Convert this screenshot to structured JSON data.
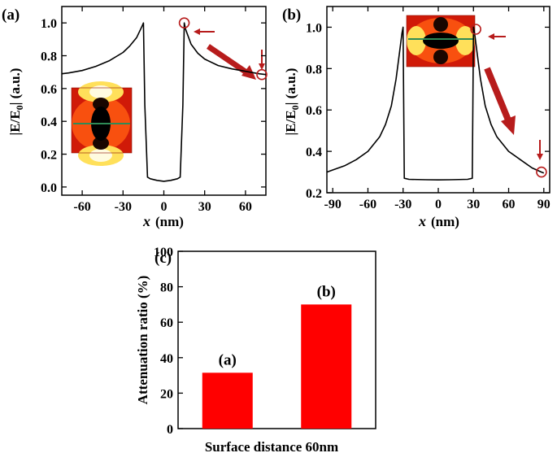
{
  "colors": {
    "curve": "#000000",
    "bar": "#ff0000",
    "annotation": "#b71c1c",
    "probe_line": "#2e8b57"
  },
  "chart_data": [
    {
      "type": "line",
      "panel_label": "(a)",
      "xlabel": "x",
      "xlabel_unit": "(nm)",
      "ylabel": "|E/E0| (a.u.)",
      "ylabel_main": "|E/E",
      "ylabel_sub": "0",
      "ylabel_tail": "| (a.u.)",
      "xlim": [
        -75,
        75
      ],
      "ylim": [
        -0.05,
        1.1
      ],
      "xticks": [
        "-60",
        "-30",
        "0",
        "30",
        "60"
      ],
      "xtick_values": [
        -60,
        -30,
        0,
        30,
        60
      ],
      "yticks": [
        "0.0",
        "0.2",
        "0.4",
        "0.6",
        "0.8",
        "1.0"
      ],
      "ytick_values": [
        0.0,
        0.2,
        0.4,
        0.6,
        0.8,
        1.0
      ],
      "series": [
        {
          "name": "|E/E0|",
          "x": [
            -75,
            -70,
            -60,
            -50,
            -40,
            -30,
            -25,
            -20,
            -16,
            -15,
            -14,
            -12,
            -10,
            -5,
            0,
            5,
            10,
            12,
            14,
            15,
            16,
            20,
            25,
            30,
            40,
            50,
            60,
            70,
            75
          ],
          "y": [
            0.69,
            0.695,
            0.71,
            0.735,
            0.77,
            0.82,
            0.86,
            0.91,
            0.98,
            1.0,
            0.5,
            0.06,
            0.05,
            0.04,
            0.035,
            0.04,
            0.05,
            0.06,
            0.5,
            1.0,
            0.96,
            0.87,
            0.815,
            0.78,
            0.74,
            0.72,
            0.705,
            0.69,
            0.685
          ]
        }
      ],
      "markers": [
        {
          "x": 15,
          "y": 1.0
        },
        {
          "x": 72,
          "y": 0.685
        }
      ]
    },
    {
      "type": "line",
      "panel_label": "(b)",
      "xlabel": "x",
      "xlabel_unit": "(nm)",
      "ylabel": "|E/E0| (a.u.)",
      "ylabel_main": "|E/E",
      "ylabel_sub": "0",
      "ylabel_tail": "| (a.u.)",
      "xlim": [
        -95,
        95
      ],
      "ylim": [
        0.2,
        1.1
      ],
      "xticks": [
        "-90",
        "-60",
        "-30",
        "0",
        "30",
        "60",
        "90"
      ],
      "xtick_values": [
        -90,
        -60,
        -30,
        0,
        30,
        60,
        90
      ],
      "yticks": [
        "0.2",
        "0.4",
        "0.6",
        "0.8",
        "1.0"
      ],
      "ytick_values": [
        0.2,
        0.4,
        0.6,
        0.8,
        1.0
      ],
      "series": [
        {
          "name": "|E/E0|",
          "x": [
            -95,
            -90,
            -80,
            -70,
            -60,
            -50,
            -45,
            -40,
            -36,
            -33,
            -31,
            -30,
            -29,
            -25,
            -10,
            0,
            10,
            25,
            29,
            30,
            31,
            33,
            36,
            40,
            45,
            50,
            60,
            70,
            80,
            88,
            90
          ],
          "y": [
            0.3,
            0.31,
            0.33,
            0.36,
            0.4,
            0.47,
            0.53,
            0.62,
            0.75,
            0.88,
            0.97,
            1.0,
            0.27,
            0.265,
            0.263,
            0.262,
            0.263,
            0.265,
            0.27,
            1.0,
            0.97,
            0.88,
            0.75,
            0.62,
            0.53,
            0.47,
            0.4,
            0.36,
            0.32,
            0.3,
            0.295
          ]
        }
      ],
      "markers": [
        {
          "x": 32,
          "y": 0.99
        },
        {
          "x": 88,
          "y": 0.3
        }
      ]
    },
    {
      "type": "bar",
      "panel_label": "(c)",
      "xlabel": "Surface distance 60nm",
      "ylabel": "Attenuation ratio (%)",
      "ylim": [
        0,
        100
      ],
      "yticks": [
        "0",
        "20",
        "40",
        "60",
        "80",
        "100"
      ],
      "ytick_values": [
        0,
        20,
        40,
        60,
        80,
        100
      ],
      "categories": [
        "(a)",
        "(b)"
      ],
      "values": [
        31.5,
        70
      ]
    }
  ]
}
